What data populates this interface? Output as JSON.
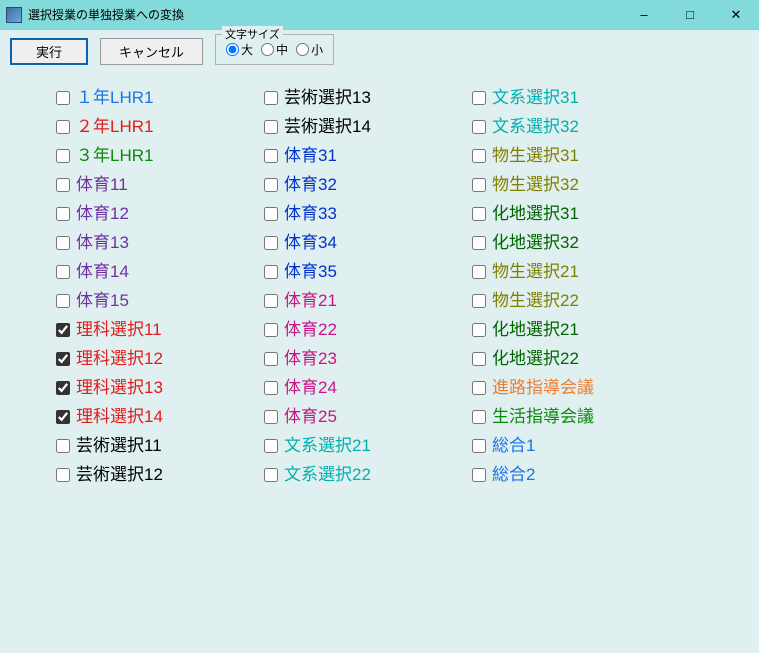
{
  "window": {
    "title": "選択授業の単独授業への変換"
  },
  "toolbar": {
    "execute": "実行",
    "cancel": "キャンセル",
    "fontsize_legend": "文字サイズ",
    "fontsize_large": "大",
    "fontsize_medium": "中",
    "fontsize_small": "小",
    "fontsize_selected": "large"
  },
  "colors": {
    "blue": "#1a73e8",
    "darkblue": "#0033cc",
    "red": "#e21b1b",
    "green": "#0a8a0a",
    "darkgreen": "#006400",
    "purple": "#800080",
    "violet": "#7030a0",
    "magenta": "#c71585",
    "olive": "#808000",
    "cyan": "#00b0b0",
    "orange": "#ed7d31",
    "black": "#000000"
  },
  "items": [
    {
      "label": "１年LHR1",
      "color": "blue",
      "checked": false
    },
    {
      "label": "２年LHR1",
      "color": "red",
      "checked": false
    },
    {
      "label": "３年LHR1",
      "color": "green",
      "checked": false
    },
    {
      "label": "体育11",
      "color": "violet",
      "checked": false
    },
    {
      "label": "体育12",
      "color": "violet",
      "checked": false
    },
    {
      "label": "体育13",
      "color": "violet",
      "checked": false
    },
    {
      "label": "体育14",
      "color": "violet",
      "checked": false
    },
    {
      "label": "体育15",
      "color": "violet",
      "checked": false
    },
    {
      "label": "理科選択11",
      "color": "red",
      "checked": true
    },
    {
      "label": "理科選択12",
      "color": "red",
      "checked": true
    },
    {
      "label": "理科選択13",
      "color": "red",
      "checked": true
    },
    {
      "label": "理科選択14",
      "color": "red",
      "checked": true
    },
    {
      "label": "芸術選択11",
      "color": "black",
      "checked": false
    },
    {
      "label": "芸術選択12",
      "color": "black",
      "checked": false
    },
    {
      "label": "芸術選択13",
      "color": "black",
      "checked": false
    },
    {
      "label": "芸術選択14",
      "color": "black",
      "checked": false
    },
    {
      "label": "体育31",
      "color": "darkblue",
      "checked": false
    },
    {
      "label": "体育32",
      "color": "darkblue",
      "checked": false
    },
    {
      "label": "体育33",
      "color": "darkblue",
      "checked": false
    },
    {
      "label": "体育34",
      "color": "darkblue",
      "checked": false
    },
    {
      "label": "体育35",
      "color": "darkblue",
      "checked": false
    },
    {
      "label": "体育21",
      "color": "magenta",
      "checked": false
    },
    {
      "label": "体育22",
      "color": "magenta",
      "checked": false
    },
    {
      "label": "体育23",
      "color": "magenta",
      "checked": false
    },
    {
      "label": "体育24",
      "color": "magenta",
      "checked": false
    },
    {
      "label": "体育25",
      "color": "magenta",
      "checked": false
    },
    {
      "label": "文系選択21",
      "color": "cyan",
      "checked": false
    },
    {
      "label": "文系選択22",
      "color": "cyan",
      "checked": false
    },
    {
      "label": "文系選択31",
      "color": "cyan",
      "checked": false
    },
    {
      "label": "文系選択32",
      "color": "cyan",
      "checked": false
    },
    {
      "label": "物生選択31",
      "color": "olive",
      "checked": false
    },
    {
      "label": "物生選択32",
      "color": "olive",
      "checked": false
    },
    {
      "label": "化地選択31",
      "color": "darkgreen",
      "checked": false
    },
    {
      "label": "化地選択32",
      "color": "darkgreen",
      "checked": false
    },
    {
      "label": "物生選択21",
      "color": "olive",
      "checked": false
    },
    {
      "label": "物生選択22",
      "color": "olive",
      "checked": false
    },
    {
      "label": "化地選択21",
      "color": "darkgreen",
      "checked": false
    },
    {
      "label": "化地選択22",
      "color": "darkgreen",
      "checked": false
    },
    {
      "label": "進路指導会議",
      "color": "orange",
      "checked": false
    },
    {
      "label": "生活指導会議",
      "color": "green",
      "checked": false
    },
    {
      "label": "総合1",
      "color": "blue",
      "checked": false
    },
    {
      "label": "総合2",
      "color": "blue",
      "checked": false
    }
  ]
}
